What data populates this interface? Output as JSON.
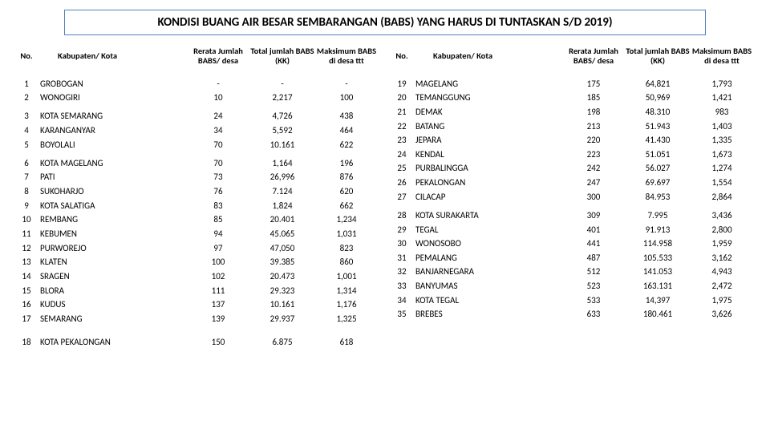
{
  "title": "KONDISI BUANG AIR BESAR SEMBARANGAN (BABS) YANG HARUS DI TUNTASKAN S/D 2019)",
  "headers": {
    "no": "No.",
    "kab": "Kabupaten/ Kota",
    "rerata": "Rerata Jumlah BABS/ desa",
    "total": "Total jumlah BABS (KK)",
    "maks": "Maksimum BABS di desa ttt"
  },
  "colors": {
    "border": "#4f81bd",
    "text": "#000000",
    "background": "#ffffff"
  },
  "typography": {
    "title_fontsize": 15,
    "header_fontsize": 10.5,
    "body_fontsize": 11,
    "font_family": "Calibri"
  },
  "left_rows": [
    {
      "no": "1",
      "kab": "GROBOGAN",
      "rerata": "-",
      "total": "-",
      "maks": "-",
      "cls": ""
    },
    {
      "no": "2",
      "kab": "WONOGIRI",
      "rerata": "10",
      "total": "2,217",
      "maks": "100",
      "cls": ""
    },
    {
      "no": "3",
      "kab": "KOTA SEMARANG",
      "rerata": "24",
      "total": "4,726",
      "maks": "438",
      "cls": "spacer"
    },
    {
      "no": "4",
      "kab": "KARANGANYAR",
      "rerata": "34",
      "total": "5,592",
      "maks": "464",
      "cls": ""
    },
    {
      "no": "5",
      "kab": "BOYOLALI",
      "rerata": "70",
      "total": "10.161",
      "maks": "622",
      "cls": ""
    },
    {
      "no": "6",
      "kab": "KOTA MAGELANG",
      "rerata": "70",
      "total": "1,164",
      "maks": "196",
      "cls": "spacer"
    },
    {
      "no": "7",
      "kab": "PATI",
      "rerata": "73",
      "total": "26,996",
      "maks": "876",
      "cls": ""
    },
    {
      "no": "8",
      "kab": "SUKOHARJO",
      "rerata": "76",
      "total": "7.124",
      "maks": "620",
      "cls": ""
    },
    {
      "no": "9",
      "kab": "KOTA SALATIGA",
      "rerata": "83",
      "total": "1,824",
      "maks": "662",
      "cls": ""
    },
    {
      "no": "10",
      "kab": "REMBANG",
      "rerata": "85",
      "total": "20.401",
      "maks": "1,234",
      "cls": ""
    },
    {
      "no": "11",
      "kab": "KEBUMEN",
      "rerata": "94",
      "total": "45.065",
      "maks": "1,031",
      "cls": ""
    },
    {
      "no": "12",
      "kab": "PURWOREJO",
      "rerata": "97",
      "total": "47,050",
      "maks": "823",
      "cls": ""
    },
    {
      "no": "13",
      "kab": "KLATEN",
      "rerata": "100",
      "total": "39.385",
      "maks": "860",
      "cls": ""
    },
    {
      "no": "14",
      "kab": "SRAGEN",
      "rerata": "102",
      "total": "20.473",
      "maks": "1,001",
      "cls": ""
    },
    {
      "no": "15",
      "kab": "BLORA",
      "rerata": "111",
      "total": "29.323",
      "maks": "1,314",
      "cls": ""
    },
    {
      "no": "16",
      "kab": "KUDUS",
      "rerata": "137",
      "total": "10.161",
      "maks": "1,176",
      "cls": ""
    },
    {
      "no": "17",
      "kab": "SEMARANG",
      "rerata": "139",
      "total": "29.937",
      "maks": "1,325",
      "cls": ""
    },
    {
      "no": "18",
      "kab": "KOTA PEKALONGAN",
      "rerata": "150",
      "total": "6.875",
      "maks": "618",
      "cls": "bigspacer"
    }
  ],
  "right_rows": [
    {
      "no": "19",
      "kab": "MAGELANG",
      "rerata": "175",
      "total": "64,821",
      "maks": "1,793",
      "cls": ""
    },
    {
      "no": "20",
      "kab": "TEMANGGUNG",
      "rerata": "185",
      "total": "50,969",
      "maks": "1,421",
      "cls": ""
    },
    {
      "no": "21",
      "kab": "DEMAK",
      "rerata": "198",
      "total": "48.310",
      "maks": "983",
      "cls": ""
    },
    {
      "no": "22",
      "kab": "BATANG",
      "rerata": "213",
      "total": "51.943",
      "maks": "1,403",
      "cls": ""
    },
    {
      "no": "23",
      "kab": "JEPARA",
      "rerata": "220",
      "total": "41.430",
      "maks": "1,335",
      "cls": ""
    },
    {
      "no": "24",
      "kab": "KENDAL",
      "rerata": "223",
      "total": "51.051",
      "maks": "1,673",
      "cls": ""
    },
    {
      "no": "25",
      "kab": "PURBALINGGA",
      "rerata": "242",
      "total": "56.027",
      "maks": "1,274",
      "cls": ""
    },
    {
      "no": "26",
      "kab": "PEKALONGAN",
      "rerata": "247",
      "total": "69.697",
      "maks": "1,554",
      "cls": ""
    },
    {
      "no": "27",
      "kab": "CILACAP",
      "rerata": "300",
      "total": "84.953",
      "maks": "2,864",
      "cls": ""
    },
    {
      "no": "28",
      "kab": "KOTA SURAKARTA",
      "rerata": "309",
      "total": "7.995",
      "maks": "3,436",
      "cls": "spacer"
    },
    {
      "no": "29",
      "kab": "TEGAL",
      "rerata": "401",
      "total": "91.913",
      "maks": "2,800",
      "cls": ""
    },
    {
      "no": "30",
      "kab": "WONOSOBO",
      "rerata": "441",
      "total": "114.958",
      "maks": "1,959",
      "cls": ""
    },
    {
      "no": "31",
      "kab": "PEMALANG",
      "rerata": "487",
      "total": "105.533",
      "maks": "3,162",
      "cls": ""
    },
    {
      "no": "32",
      "kab": "BANJARNEGARA",
      "rerata": "512",
      "total": "141.053",
      "maks": "4,943",
      "cls": ""
    },
    {
      "no": "33",
      "kab": "BANYUMAS",
      "rerata": "523",
      "total": "163.131",
      "maks": "2,472",
      "cls": ""
    },
    {
      "no": "34",
      "kab": "KOTA TEGAL",
      "rerata": "533",
      "total": "14,397",
      "maks": "1,975",
      "cls": ""
    },
    {
      "no": "35",
      "kab": "BREBES",
      "rerata": "633",
      "total": "180.461",
      "maks": "3,626",
      "cls": ""
    }
  ]
}
